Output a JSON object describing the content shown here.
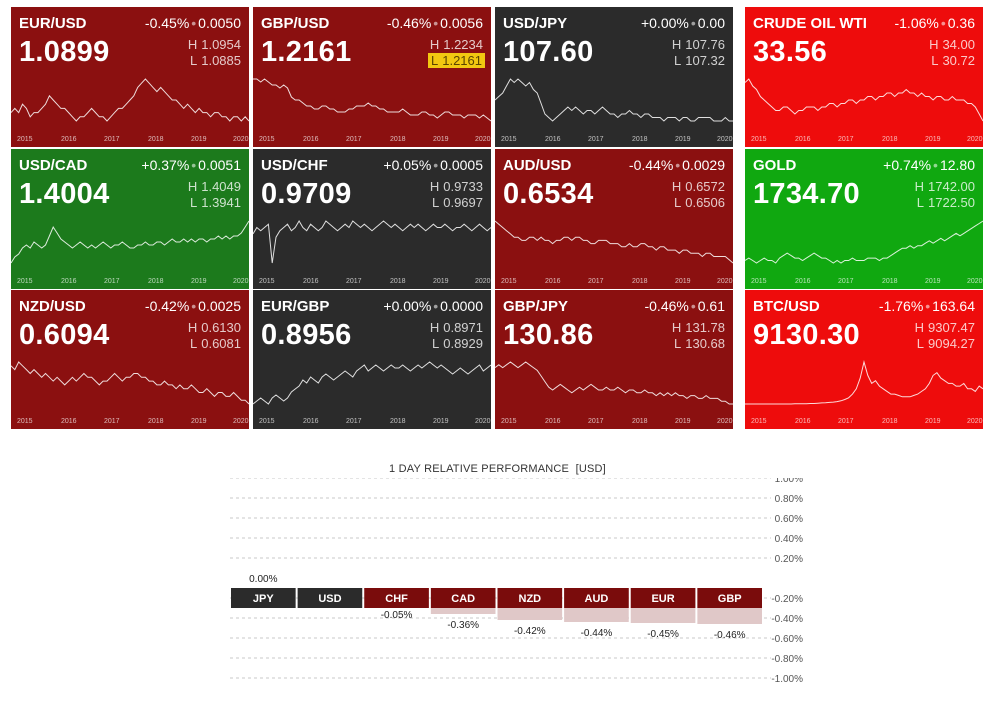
{
  "tiles": [
    {
      "symbol": "EUR/USD",
      "change_pct": "-0.45%",
      "change_abs": "0.0050",
      "price": "1.0899",
      "high_label": "H",
      "high": "1.0954",
      "low_label": "L",
      "low": "1.0885",
      "bg": "#8b1010",
      "mark": "",
      "spark": [
        5,
        6,
        5,
        7,
        6,
        4,
        5,
        5,
        6,
        7,
        9,
        8,
        7,
        6,
        6,
        5,
        4,
        3,
        4,
        4,
        5,
        6,
        5,
        4,
        4,
        3,
        4,
        5,
        6,
        6,
        7,
        8,
        9,
        11,
        12,
        13,
        12,
        11,
        10,
        11,
        10,
        9,
        8,
        8,
        7,
        6,
        7,
        6,
        5,
        6,
        5,
        5,
        4,
        5,
        5,
        4,
        4,
        3,
        4,
        4,
        3,
        4,
        3
      ]
    },
    {
      "symbol": "GBP/USD",
      "change_pct": "-0.46%",
      "change_abs": "0.0056",
      "price": "1.2161",
      "high_label": "H",
      "high": "1.2234",
      "low_label": "L",
      "low": "1.2161",
      "bg": "#8b1010",
      "mark": "low",
      "spark": [
        15,
        15,
        14,
        15,
        14,
        13,
        13,
        12,
        13,
        12,
        9,
        8,
        8,
        7,
        6,
        6,
        5,
        5,
        6,
        6,
        5,
        5,
        4,
        4,
        4,
        5,
        5,
        6,
        6,
        6,
        7,
        6,
        6,
        5,
        5,
        4,
        4,
        4,
        4,
        5,
        4,
        3,
        3,
        3,
        4,
        4,
        3,
        3,
        2,
        3,
        4,
        4,
        3,
        3,
        3,
        2,
        3,
        3,
        3,
        2,
        3,
        2,
        1
      ]
    },
    {
      "symbol": "USD/JPY",
      "change_pct": "+0.00%",
      "change_abs": "0.00",
      "price": "107.60",
      "high_label": "H",
      "high": "107.76",
      "low_label": "L",
      "low": "107.32",
      "bg": "#2b2b2b",
      "mark": "",
      "spark": [
        10,
        11,
        12,
        14,
        16,
        15,
        16,
        15,
        14,
        15,
        13,
        12,
        9,
        6,
        5,
        4,
        5,
        6,
        7,
        8,
        7,
        8,
        7,
        6,
        7,
        7,
        6,
        7,
        8,
        7,
        6,
        6,
        5,
        6,
        6,
        7,
        6,
        6,
        5,
        6,
        6,
        5,
        5,
        5,
        4,
        5,
        5,
        5,
        4,
        5,
        5,
        4,
        4,
        5,
        5,
        5,
        5,
        4,
        4,
        4,
        5,
        4,
        4
      ]
    },
    {
      "symbol": "CRUDE OIL WTI",
      "change_pct": "-1.06%",
      "change_abs": "0.36",
      "price": "33.56",
      "high_label": "H",
      "high": "34.00",
      "low_label": "L",
      "low": "30.72",
      "bg": "#ee0c0c",
      "mark": "",
      "spark": [
        12,
        13,
        11,
        10,
        8,
        7,
        6,
        5,
        4,
        4,
        5,
        5,
        4,
        3,
        4,
        4,
        5,
        5,
        5,
        4,
        5,
        5,
        6,
        6,
        5,
        6,
        6,
        7,
        7,
        6,
        7,
        7,
        8,
        8,
        7,
        8,
        8,
        9,
        9,
        8,
        9,
        9,
        10,
        9,
        9,
        8,
        9,
        8,
        8,
        7,
        8,
        8,
        7,
        7,
        8,
        7,
        7,
        7,
        6,
        6,
        5,
        3,
        1
      ]
    },
    {
      "symbol": "USD/CAD",
      "change_pct": "+0.37%",
      "change_abs": "0.0051",
      "price": "1.4004",
      "high_label": "H",
      "high": "1.4049",
      "low_label": "L",
      "low": "1.3941",
      "bg": "#1c7a1c",
      "mark": "",
      "spark": [
        3,
        5,
        6,
        8,
        9,
        8,
        10,
        9,
        8,
        9,
        12,
        15,
        13,
        11,
        10,
        9,
        8,
        9,
        10,
        9,
        8,
        9,
        8,
        9,
        10,
        9,
        8,
        9,
        9,
        10,
        9,
        8,
        8,
        9,
        9,
        10,
        9,
        9,
        10,
        10,
        9,
        10,
        11,
        10,
        10,
        11,
        10,
        11,
        10,
        11,
        11,
        10,
        11,
        11,
        12,
        11,
        12,
        11,
        12,
        12,
        13,
        15,
        17
      ]
    },
    {
      "symbol": "USD/CHF",
      "change_pct": "+0.05%",
      "change_abs": "0.0005",
      "price": "0.9709",
      "high_label": "H",
      "high": "0.9733",
      "low_label": "L",
      "low": "0.9697",
      "bg": "#2b2b2b",
      "mark": "",
      "spark": [
        10,
        12,
        11,
        12,
        13,
        1,
        9,
        11,
        12,
        13,
        11,
        12,
        14,
        12,
        11,
        13,
        12,
        11,
        12,
        14,
        13,
        12,
        11,
        12,
        13,
        12,
        14,
        13,
        12,
        13,
        12,
        11,
        12,
        13,
        14,
        13,
        12,
        13,
        12,
        11,
        12,
        13,
        12,
        13,
        12,
        11,
        12,
        13,
        12,
        12,
        13,
        12,
        11,
        12,
        12,
        13,
        12,
        11,
        12,
        13,
        12,
        11,
        12
      ]
    },
    {
      "symbol": "AUD/USD",
      "change_pct": "-0.44%",
      "change_abs": "0.0029",
      "price": "0.6534",
      "high_label": "H",
      "high": "0.6572",
      "low_label": "L",
      "low": "0.6506",
      "bg": "#8b1010",
      "mark": "",
      "spark": [
        14,
        13,
        12,
        11,
        10,
        9,
        9,
        8,
        8,
        9,
        9,
        8,
        9,
        8,
        8,
        7,
        8,
        8,
        9,
        9,
        8,
        9,
        9,
        8,
        8,
        7,
        7,
        8,
        8,
        8,
        7,
        7,
        7,
        6,
        6,
        7,
        6,
        6,
        7,
        7,
        6,
        6,
        5,
        6,
        6,
        5,
        5,
        5,
        4,
        5,
        5,
        4,
        4,
        4,
        3,
        4,
        4,
        3,
        3,
        3,
        3,
        2,
        1
      ]
    },
    {
      "symbol": "GOLD",
      "change_pct": "+0.74%",
      "change_abs": "12.80",
      "price": "1734.70",
      "high_label": "H",
      "high": "1742.00",
      "low_label": "L",
      "low": "1722.50",
      "bg": "#10a810",
      "mark": "",
      "spark": [
        3,
        4,
        3,
        2,
        3,
        4,
        3,
        3,
        2,
        4,
        5,
        6,
        5,
        4,
        4,
        3,
        4,
        5,
        6,
        5,
        4,
        4,
        3,
        2,
        3,
        2,
        3,
        3,
        4,
        3,
        3,
        3,
        4,
        4,
        4,
        3,
        4,
        4,
        5,
        6,
        7,
        8,
        8,
        9,
        8,
        9,
        9,
        10,
        11,
        10,
        11,
        12,
        11,
        12,
        13,
        14,
        13,
        14,
        15,
        16,
        17,
        18,
        19
      ]
    },
    {
      "symbol": "NZD/USD",
      "change_pct": "-0.42%",
      "change_abs": "0.0025",
      "price": "0.6094",
      "high_label": "H",
      "high": "0.6130",
      "low_label": "L",
      "low": "0.6081",
      "bg": "#8b1010",
      "mark": "",
      "spark": [
        11,
        10,
        12,
        11,
        10,
        9,
        10,
        9,
        8,
        9,
        8,
        7,
        8,
        7,
        6,
        7,
        8,
        7,
        8,
        9,
        8,
        8,
        7,
        6,
        7,
        7,
        8,
        9,
        8,
        7,
        8,
        8,
        9,
        9,
        8,
        8,
        7,
        7,
        6,
        6,
        7,
        6,
        6,
        5,
        6,
        5,
        5,
        6,
        5,
        4,
        4,
        5,
        4,
        3,
        4,
        4,
        3,
        3,
        4,
        3,
        2,
        2,
        1
      ]
    },
    {
      "symbol": "EUR/GBP",
      "change_pct": "+0.00%",
      "change_abs": "0.0000",
      "price": "0.8956",
      "high_label": "H",
      "high": "0.8971",
      "low_label": "L",
      "low": "0.8929",
      "bg": "#2b2b2b",
      "mark": "",
      "spark": [
        3,
        4,
        5,
        4,
        3,
        5,
        6,
        5,
        4,
        5,
        7,
        8,
        9,
        11,
        10,
        12,
        11,
        10,
        12,
        13,
        12,
        11,
        12,
        13,
        14,
        13,
        12,
        14,
        15,
        16,
        14,
        15,
        16,
        15,
        14,
        15,
        16,
        15,
        15,
        16,
        15,
        14,
        15,
        16,
        15,
        16,
        17,
        16,
        15,
        16,
        15,
        14,
        13,
        14,
        15,
        14,
        13,
        14,
        15,
        16,
        14,
        15,
        16
      ]
    },
    {
      "symbol": "GBP/JPY",
      "change_pct": "-0.46%",
      "change_abs": "0.61",
      "price": "130.86",
      "high_label": "H",
      "high": "131.78",
      "low_label": "L",
      "low": "130.68",
      "bg": "#8b1010",
      "mark": "",
      "spark": [
        15,
        16,
        15,
        16,
        17,
        16,
        15,
        16,
        17,
        16,
        15,
        14,
        12,
        10,
        8,
        7,
        8,
        9,
        8,
        7,
        6,
        7,
        8,
        7,
        8,
        9,
        8,
        7,
        7,
        8,
        7,
        7,
        8,
        7,
        6,
        7,
        7,
        6,
        6,
        7,
        6,
        6,
        5,
        6,
        5,
        6,
        5,
        6,
        5,
        5,
        4,
        5,
        5,
        4,
        4,
        5,
        4,
        4,
        4,
        3,
        3,
        2,
        2
      ]
    },
    {
      "symbol": "BTC/USD",
      "change_pct": "-1.76%",
      "change_abs": "163.64",
      "price": "9130.30",
      "high_label": "H",
      "high": "9307.47",
      "low_label": "L",
      "low": "9094.27",
      "bg": "#ee0c0c",
      "mark": "",
      "spark": [
        0.3,
        0.3,
        0.3,
        0.3,
        0.3,
        0.3,
        0.3,
        0.3,
        0.3,
        0.3,
        0.3,
        0.3,
        0.3,
        0.4,
        0.4,
        0.4,
        0.4,
        0.5,
        0.5,
        0.6,
        0.7,
        0.8,
        0.9,
        1,
        1.2,
        1.5,
        2,
        2.6,
        4,
        6,
        10,
        16,
        11,
        8,
        9,
        7,
        6,
        5,
        4,
        4,
        3.5,
        3,
        3,
        3,
        3.5,
        4,
        5,
        6,
        8,
        11,
        12,
        10,
        9,
        8,
        8,
        7,
        7,
        8,
        6,
        6,
        5,
        7,
        6
      ]
    }
  ],
  "tile_years": [
    "2015",
    "2016",
    "2017",
    "2018",
    "2019",
    "2020"
  ],
  "performance": {
    "title": "1 DAY RELATIVE PERFORMANCE",
    "unit": "[USD]",
    "ticks_pos": [
      "1.00%",
      "0.80%",
      "0.60%",
      "0.40%",
      "0.20%"
    ],
    "ticks_neg": [
      "-0.20%",
      "-0.40%",
      "-0.60%",
      "-0.80%",
      "-1.00%"
    ],
    "bars": [
      {
        "currency": "JPY",
        "value": 0.0,
        "label": "0.00%"
      },
      {
        "currency": "USD",
        "value": 0.0,
        "label": ""
      },
      {
        "currency": "CHF",
        "value": -0.05,
        "label": "-0.05%"
      },
      {
        "currency": "CAD",
        "value": -0.36,
        "label": "-0.36%"
      },
      {
        "currency": "NZD",
        "value": -0.42,
        "label": "-0.42%"
      },
      {
        "currency": "AUD",
        "value": -0.44,
        "label": "-0.44%"
      },
      {
        "currency": "EUR",
        "value": -0.45,
        "label": "-0.45%"
      },
      {
        "currency": "GBP",
        "value": -0.46,
        "label": "-0.46%"
      }
    ],
    "colors": {
      "neutral": "#2b2b2b",
      "negative": "#7a0c0c",
      "negative_fill": "#e0c8c8"
    }
  },
  "chart_data": {
    "type": "bar",
    "title": "1 DAY RELATIVE PERFORMANCE [USD]",
    "categories": [
      "JPY",
      "USD",
      "CHF",
      "CAD",
      "NZD",
      "AUD",
      "EUR",
      "GBP"
    ],
    "values": [
      0.0,
      0.0,
      -0.05,
      -0.36,
      -0.42,
      -0.44,
      -0.45,
      -0.46
    ],
    "ylim": [
      -1.0,
      1.0
    ],
    "xlabel": "",
    "ylabel": "",
    "grid": true
  }
}
